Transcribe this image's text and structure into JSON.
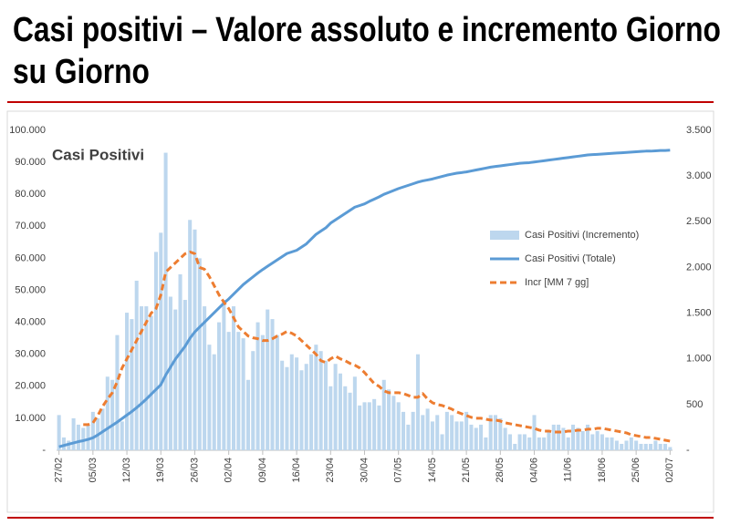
{
  "chart_data": {
    "type": "bar",
    "title": "Casi positivi – Valore assoluto e incremento Giorno su Giorno",
    "annotation": "Casi Positivi",
    "categories": [
      "27/02",
      null,
      null,
      null,
      null,
      null,
      null,
      "05/03",
      null,
      null,
      null,
      null,
      null,
      null,
      "12/03",
      null,
      null,
      null,
      null,
      null,
      null,
      "19/03",
      null,
      null,
      null,
      null,
      null,
      null,
      "26/03",
      null,
      null,
      null,
      null,
      null,
      null,
      "02/04",
      null,
      null,
      null,
      null,
      null,
      null,
      "09/04",
      null,
      null,
      null,
      null,
      null,
      null,
      "16/04",
      null,
      null,
      null,
      null,
      null,
      null,
      "23/04",
      null,
      null,
      null,
      null,
      null,
      null,
      "30/04",
      null,
      null,
      null,
      null,
      null,
      null,
      "07/05",
      null,
      null,
      null,
      null,
      null,
      null,
      "14/05",
      null,
      null,
      null,
      null,
      null,
      null,
      "21/05",
      null,
      null,
      null,
      null,
      null,
      null,
      "28/05",
      null,
      null,
      null,
      null,
      null,
      null,
      "04/06",
      null,
      null,
      null,
      null,
      null,
      null,
      "11/06",
      null,
      null,
      null,
      null,
      null,
      null,
      "18/06",
      null,
      null,
      null,
      null,
      null,
      null,
      "25/06",
      null,
      null,
      null,
      null,
      null,
      null,
      "02/07"
    ],
    "series": [
      {
        "name": "Casi Positivi (Incremento)",
        "type": "bar",
        "axis": "y2",
        "color": "#bdd7ee",
        "values": [
          385,
          140,
          105,
          350,
          280,
          245,
          280,
          420,
          350,
          455,
          805,
          770,
          1260,
          315,
          1505,
          1435,
          1855,
          1575,
          1575,
          1470,
          2170,
          2380,
          3255,
          1680,
          1540,
          1925,
          1645,
          2520,
          2415,
          2100,
          1575,
          1155,
          1050,
          1400,
          1645,
          1295,
          1575,
          1295,
          1225,
          770,
          1085,
          1400,
          1260,
          1540,
          1435,
          1260,
          980,
          910,
          1050,
          1015,
          875,
          945,
          1050,
          1155,
          1085,
          980,
          700,
          945,
          840,
          700,
          630,
          805,
          490,
          525,
          525,
          560,
          490,
          770,
          665,
          595,
          525,
          420,
          280,
          420,
          1050,
          385,
          455,
          315,
          385,
          175,
          420,
          385,
          315,
          315,
          420,
          280,
          245,
          280,
          140,
          385,
          385,
          350,
          245,
          175,
          70,
          175,
          175,
          140,
          385,
          140,
          140,
          210,
          280,
          280,
          245,
          140,
          280,
          245,
          210,
          280,
          175,
          210,
          175,
          140,
          140,
          105,
          70,
          105,
          140,
          105,
          70,
          70,
          70,
          105,
          70,
          70,
          35
        ]
      },
      {
        "name": "Casi Positivi (Totale)",
        "type": "line",
        "color": "#5b9bd5",
        "values": [
          1100,
          1500,
          1900,
          2300,
          2700,
          3000,
          3400,
          3900,
          4800,
          5800,
          6800,
          7800,
          8800,
          9900,
          11000,
          12100,
          13300,
          14600,
          16000,
          17500,
          19000,
          20500,
          23500,
          26000,
          28500,
          30500,
          32500,
          35000,
          37000,
          38500,
          40000,
          41500,
          43000,
          44500,
          46000,
          47300,
          48800,
          50300,
          51800,
          53000,
          54200,
          55400,
          56500,
          57500,
          58500,
          59500,
          60500,
          61500,
          62000,
          62500,
          63500,
          64500,
          66000,
          67500,
          68500,
          69500,
          71000,
          72000,
          73000,
          74000,
          75000,
          76000,
          76500,
          77000,
          77800,
          78500,
          79200,
          80000,
          80600,
          81200,
          81800,
          82300,
          82800,
          83300,
          83800,
          84200,
          84500,
          84800,
          85200,
          85600,
          86000,
          86300,
          86600,
          86800,
          87000,
          87300,
          87600,
          87900,
          88200,
          88500,
          88700,
          88900,
          89100,
          89300,
          89500,
          89700,
          89800,
          89900,
          90100,
          90300,
          90500,
          90700,
          90900,
          91100,
          91300,
          91500,
          91700,
          91900,
          92100,
          92300,
          92400,
          92500,
          92600,
          92700,
          92800,
          92900,
          93000,
          93100,
          93200,
          93300,
          93400,
          93500,
          93500,
          93600,
          93700,
          93700,
          93800
        ]
      },
      {
        "name": "Incr [MM 7 gg]",
        "type": "line",
        "dashed": true,
        "axis": "y2",
        "color": "#ed7d31",
        "values": [
          null,
          null,
          null,
          null,
          null,
          280,
          280,
          300,
          380,
          480,
          560,
          630,
          750,
          900,
          1000,
          1100,
          1200,
          1300,
          1400,
          1500,
          1550,
          1700,
          1950,
          2000,
          2050,
          2100,
          2150,
          2170,
          2150,
          2000,
          1980,
          1900,
          1800,
          1700,
          1620,
          1550,
          1450,
          1350,
          1300,
          1250,
          1230,
          1220,
          1200,
          1200,
          1220,
          1250,
          1270,
          1300,
          1280,
          1250,
          1200,
          1150,
          1100,
          1050,
          980,
          960,
          1000,
          1030,
          1000,
          980,
          950,
          930,
          900,
          850,
          790,
          730,
          700,
          650,
          630,
          630,
          630,
          620,
          600,
          580,
          580,
          620,
          560,
          520,
          500,
          490,
          470,
          450,
          420,
          400,
          380,
          360,
          350,
          350,
          340,
          330,
          330,
          320,
          300,
          290,
          280,
          270,
          260,
          250,
          240,
          220,
          210,
          210,
          200,
          200,
          200,
          210,
          210,
          220,
          220,
          230,
          230,
          240,
          240,
          230,
          220,
          210,
          200,
          190,
          170,
          160,
          150,
          140,
          140,
          130,
          120,
          110,
          100
        ]
      }
    ],
    "ylim": [
      0,
      100000
    ],
    "yticks": [
      {
        "value": 0,
        "label": "-"
      },
      {
        "value": 10000,
        "label": "10.000"
      },
      {
        "value": 20000,
        "label": "20.000"
      },
      {
        "value": 30000,
        "label": "30.000"
      },
      {
        "value": 40000,
        "label": "40.000"
      },
      {
        "value": 50000,
        "label": "50.000"
      },
      {
        "value": 60000,
        "label": "60.000"
      },
      {
        "value": 70000,
        "label": "70.000"
      },
      {
        "value": 80000,
        "label": "80.000"
      },
      {
        "value": 90000,
        "label": "90.000"
      },
      {
        "value": 100000,
        "label": "100.000"
      }
    ],
    "y2lim": [
      0,
      3500
    ],
    "y2ticks": [
      {
        "value": 0,
        "label": "-"
      },
      500,
      {
        "value": 1000,
        "label": "1.000"
      },
      {
        "value": 1500,
        "label": "1.500"
      },
      {
        "value": 2000,
        "label": "2.000"
      },
      {
        "value": 2500,
        "label": "2.500"
      },
      {
        "value": 3000,
        "label": "3.000"
      },
      {
        "value": 3500,
        "label": "3.500"
      }
    ],
    "grid": false,
    "legend": "right"
  }
}
